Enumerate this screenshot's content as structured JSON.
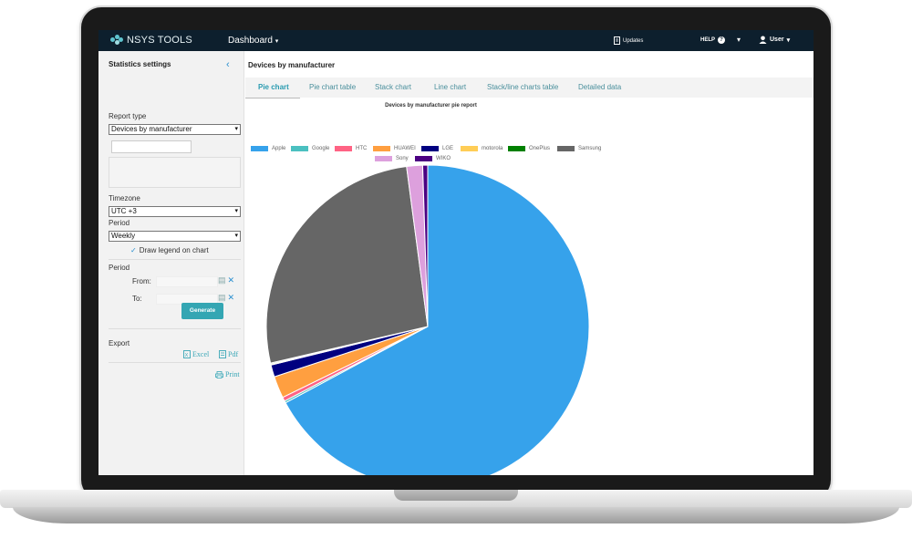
{
  "app": {
    "logo_text": "NSYS TOOLS",
    "nav": {
      "dashboard": "Dashboard",
      "dashboard_caret": "▾",
      "updates": "Updates",
      "help": "HELP",
      "help_icon": "?",
      "caret": "▾",
      "user": "User",
      "user_caret": "▾"
    }
  },
  "sidebar": {
    "title": "Statistics settings",
    "collapse_icon": "‹",
    "report_type_label": "Report type",
    "report_type_value": "Devices by manufacturer",
    "timezone_label": "Timezone",
    "timezone_value": "UTC +3",
    "period_label": "Period",
    "period_value": "Weekly",
    "draw_legend_label": "Draw legend on chart",
    "date_period_label": "Period",
    "from_label": "From:",
    "to_label": "To:",
    "generate_label": "Generate",
    "export_label": "Export",
    "excel_label": "Excel",
    "pdf_label": "Pdf",
    "print_label": "Print",
    "select_arrow": "▾"
  },
  "main": {
    "title": "Devices by manufacturer",
    "tabs": [
      {
        "label": "Pie chart",
        "active": true
      },
      {
        "label": "Pie chart table",
        "active": false
      },
      {
        "label": "Stack chart",
        "active": false
      },
      {
        "label": "Line chart",
        "active": false
      },
      {
        "label": "Stack/line charts table",
        "active": false
      },
      {
        "label": "Detailed data",
        "active": false
      }
    ]
  },
  "chart_data": {
    "type": "pie",
    "title": "Devices by manufacturer pie report",
    "legend_placement": "top",
    "slices": [
      {
        "label": "Apple",
        "value": 67.3,
        "color": "#36a2eb"
      },
      {
        "label": "Google",
        "value": 0.2,
        "color": "#4bc0c0"
      },
      {
        "label": "HTC",
        "value": 0.4,
        "color": "#ff6384"
      },
      {
        "label": "HUAWEI",
        "value": 2.2,
        "color": "#ff9f40"
      },
      {
        "label": "LGE",
        "value": 1.2,
        "color": "#000080"
      },
      {
        "label": "motorola",
        "value": 0.1,
        "color": "#ffcd56"
      },
      {
        "label": "OnePlus",
        "value": 0.1,
        "color": "#008000"
      },
      {
        "label": "Samsung",
        "value": 26.6,
        "color": "#666666"
      },
      {
        "label": "Sony",
        "value": 1.6,
        "color": "#dda0dd"
      },
      {
        "label": "WIKO",
        "value": 0.5,
        "color": "#4b0082"
      }
    ]
  }
}
